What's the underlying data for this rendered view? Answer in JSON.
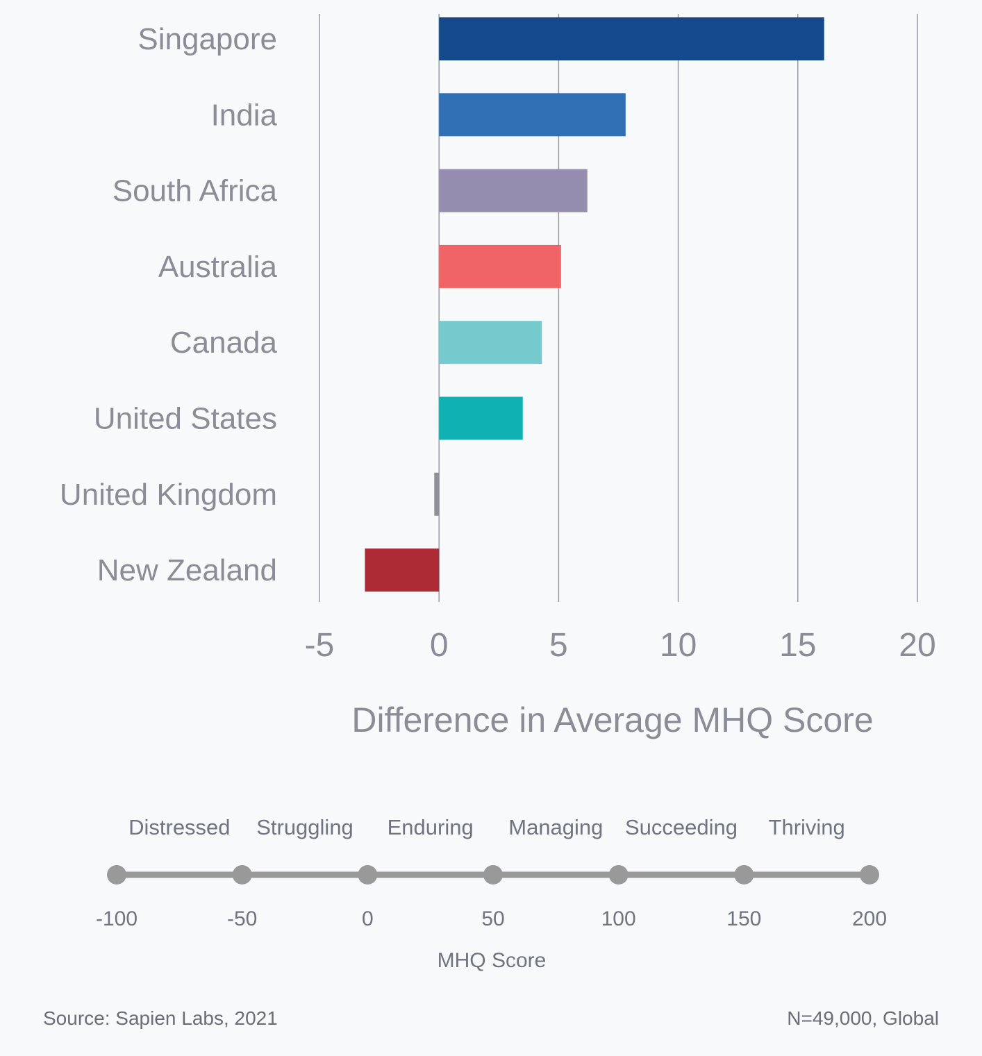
{
  "chart_data": {
    "type": "bar",
    "orientation": "horizontal",
    "categories": [
      "Singapore",
      "India",
      "South Africa",
      "Australia",
      "Canada",
      "United States",
      "United Kingdom",
      "New Zealand"
    ],
    "values": [
      16.1,
      7.8,
      6.2,
      5.1,
      4.3,
      3.5,
      -0.2,
      -3.1
    ],
    "colors": [
      "#144a8c",
      "#306fb4",
      "#958daf",
      "#f06366",
      "#75cace",
      "#10b1b2",
      "#8f9199",
      "#ad2b35"
    ],
    "xlabel": "Difference in Average MHQ Score",
    "xlim": [
      -5,
      20
    ],
    "xticks": [
      "-5",
      "0",
      "5",
      "10",
      "15",
      "20"
    ],
    "grid": "vertical"
  },
  "scale": {
    "title": "MHQ Score",
    "categories": [
      "Distressed",
      "Struggling",
      "Enduring",
      "Managing",
      "Succeeding",
      "Thriving"
    ],
    "ticks": [
      "-100",
      "-50",
      "0",
      "50",
      "100",
      "150",
      "200"
    ]
  },
  "footer": {
    "source": "Source: Sapien Labs, 2021",
    "note": "N=49,000, Global"
  }
}
